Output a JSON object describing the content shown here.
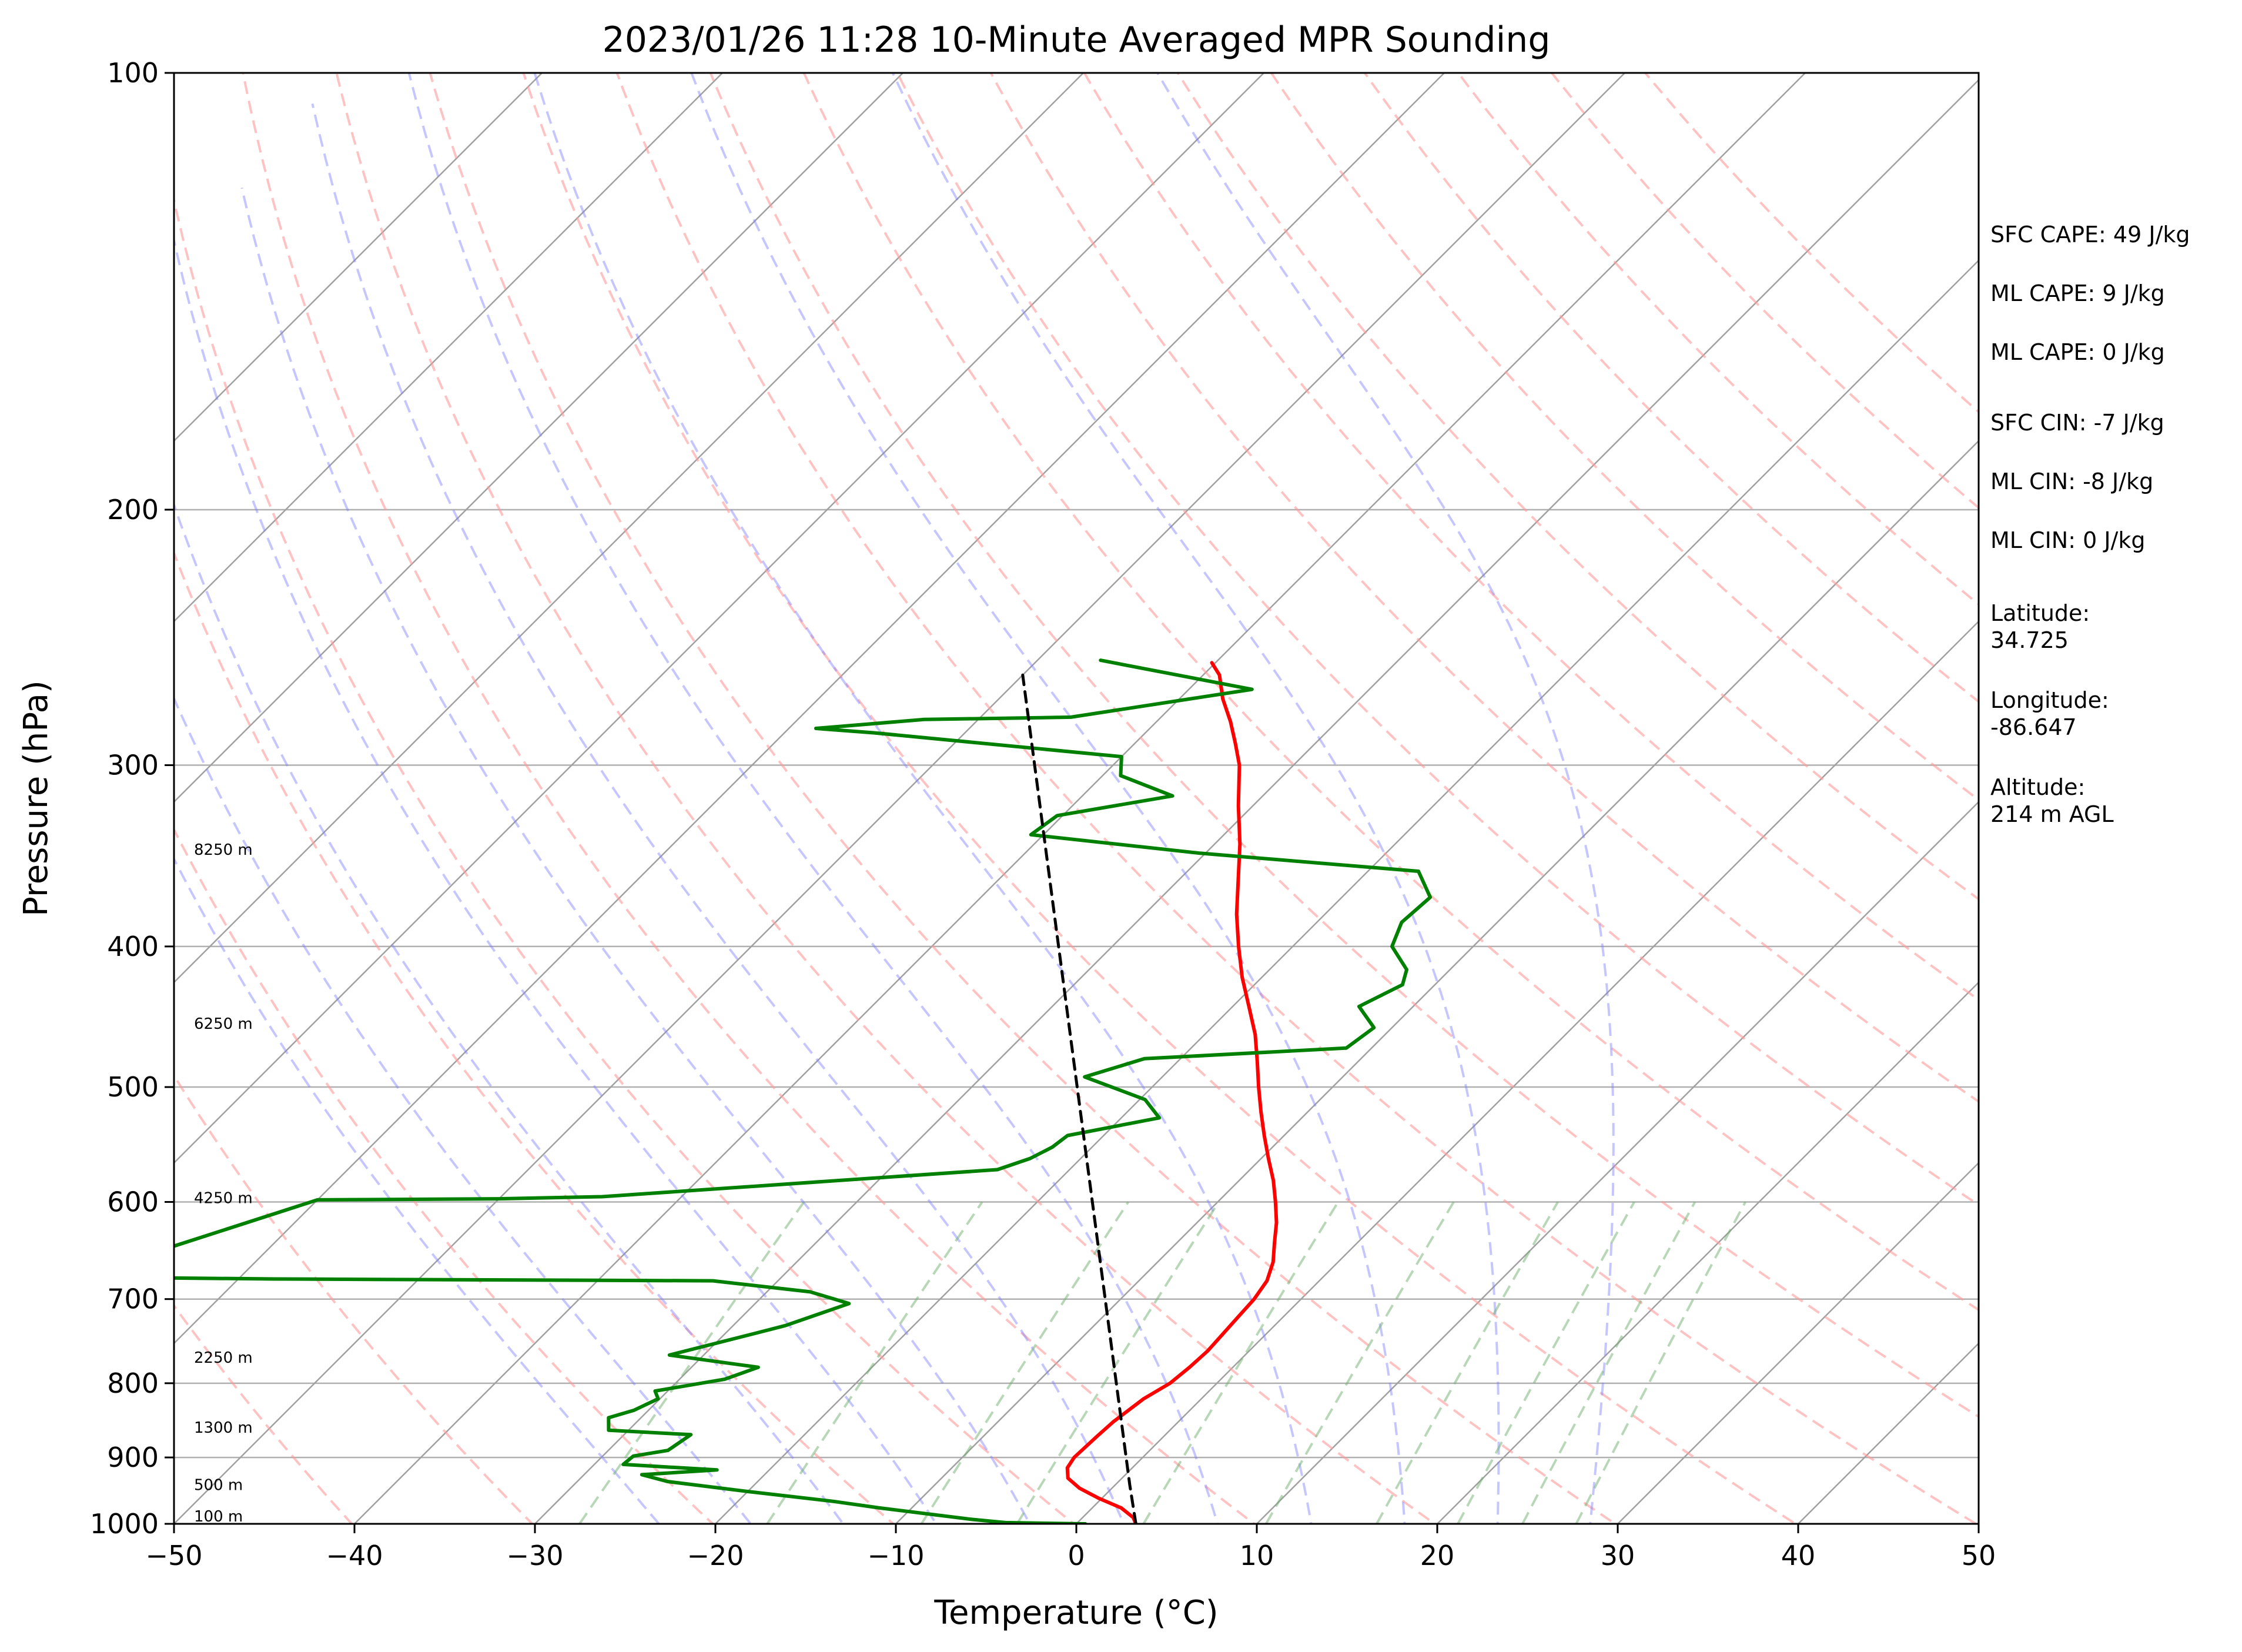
{
  "chart_data": {
    "type": "skew-t",
    "title": "2023/01/26 11:28 10-Minute Averaged MPR Sounding",
    "xlabel": "Temperature (°C)",
    "ylabel": "Pressure (hPa)",
    "xlim": [
      -50,
      50
    ],
    "ylim": [
      1000,
      100
    ],
    "y_scale": "log",
    "grid": true,
    "x_ticks": [
      -50,
      -40,
      -30,
      -20,
      -10,
      0,
      10,
      20,
      30,
      40,
      50
    ],
    "x_tick_labels": [
      "−50",
      "−40",
      "−30",
      "−20",
      "−10",
      "0",
      "10",
      "20",
      "30",
      "40",
      "50"
    ],
    "y_ticks": [
      1000,
      900,
      800,
      700,
      600,
      500,
      400,
      300,
      200,
      100
    ],
    "y_tick_labels": [
      "1000",
      "900",
      "800",
      "700",
      "600",
      "500",
      "400",
      "300",
      "200",
      "100"
    ],
    "isotherms": [
      -110,
      -100,
      -90,
      -80,
      -70,
      -60,
      -50,
      -40,
      -30,
      -20,
      -10,
      0,
      10,
      20,
      30,
      40,
      50
    ],
    "dry_adiabats_theta_K": [
      233,
      243,
      253,
      263,
      273,
      283,
      293,
      303,
      313,
      323,
      333,
      343,
      353,
      363,
      373,
      383,
      393,
      403,
      413,
      423,
      433
    ],
    "moist_adiabats_start_C": [
      -20,
      -15,
      -10,
      -5,
      0,
      5,
      10,
      15,
      20,
      25,
      30
    ],
    "mixing_ratios_gkg": [
      0.4,
      1,
      2,
      3,
      5,
      8,
      12,
      16,
      20,
      24
    ],
    "series": [
      {
        "name": "Temperature",
        "color": "#ff0000",
        "points": [
          [
            1000,
            3.3
          ],
          [
            990,
            2.8
          ],
          [
            975,
            1.6
          ],
          [
            960,
            -0.2
          ],
          [
            945,
            -1.8
          ],
          [
            930,
            -3.0
          ],
          [
            915,
            -3.6
          ],
          [
            900,
            -3.8
          ],
          [
            870,
            -3.7
          ],
          [
            850,
            -3.6
          ],
          [
            820,
            -3.2
          ],
          [
            800,
            -2.6
          ],
          [
            780,
            -2.4
          ],
          [
            760,
            -2.3
          ],
          [
            740,
            -2.4
          ],
          [
            720,
            -2.5
          ],
          [
            700,
            -2.6
          ],
          [
            680,
            -2.9
          ],
          [
            660,
            -3.6
          ],
          [
            640,
            -4.6
          ],
          [
            620,
            -5.6
          ],
          [
            600,
            -6.8
          ],
          [
            580,
            -8.1
          ],
          [
            560,
            -9.6
          ],
          [
            540,
            -11.1
          ],
          [
            520,
            -12.6
          ],
          [
            500,
            -14.1
          ],
          [
            480,
            -15.6
          ],
          [
            460,
            -17.2
          ],
          [
            440,
            -19.1
          ],
          [
            420,
            -21.1
          ],
          [
            400,
            -23.0
          ],
          [
            380,
            -24.9
          ],
          [
            360,
            -26.7
          ],
          [
            340,
            -28.6
          ],
          [
            320,
            -30.8
          ],
          [
            300,
            -33.0
          ],
          [
            290,
            -34.4
          ],
          [
            280,
            -35.9
          ],
          [
            270,
            -37.6
          ],
          [
            260,
            -39.1
          ],
          [
            255,
            -40.2
          ]
        ]
      },
      {
        "name": "Dewpoint",
        "color": "#008000",
        "points": [
          [
            1000,
            0.5
          ],
          [
            998,
            -4.0
          ],
          [
            993,
            -6.0
          ],
          [
            975,
            -11.8
          ],
          [
            965,
            -14.7
          ],
          [
            950,
            -20.0
          ],
          [
            935,
            -25.0
          ],
          [
            925,
            -26.8
          ],
          [
            918,
            -22.9
          ],
          [
            910,
            -28.4
          ],
          [
            898,
            -28.3
          ],
          [
            890,
            -26.7
          ],
          [
            868,
            -26.3
          ],
          [
            862,
            -31.1
          ],
          [
            845,
            -31.8
          ],
          [
            835,
            -30.8
          ],
          [
            820,
            -30.1
          ],
          [
            810,
            -30.7
          ],
          [
            795,
            -27.5
          ],
          [
            790,
            -27.1
          ],
          [
            780,
            -26.3
          ],
          [
            765,
            -31.9
          ],
          [
            738,
            -28.2
          ],
          [
            730,
            -27.1
          ],
          [
            705,
            -24.8
          ],
          [
            692,
            -27.6
          ],
          [
            680,
            -33.6
          ],
          [
            678,
            -58.0
          ],
          [
            676,
            -69.0
          ],
          [
            598,
            -60.0
          ],
          [
            597,
            -50.0
          ],
          [
            595,
            -44.4
          ],
          [
            570,
            -24.0
          ],
          [
            560,
            -22.8
          ],
          [
            550,
            -22.2
          ],
          [
            540,
            -22.0
          ],
          [
            525,
            -17.9
          ],
          [
            510,
            -19.7
          ],
          [
            492,
            -24.3
          ],
          [
            478,
            -22.0
          ],
          [
            470,
            -11.4
          ],
          [
            455,
            -11.0
          ],
          [
            440,
            -13.0
          ],
          [
            425,
            -11.8
          ],
          [
            415,
            -12.4
          ],
          [
            400,
            -14.5
          ],
          [
            385,
            -15.3
          ],
          [
            370,
            -15.1
          ],
          [
            355,
            -17.2
          ],
          [
            345,
            -30.3
          ],
          [
            335,
            -40.7
          ],
          [
            325,
            -40.3
          ],
          [
            315,
            -35.0
          ],
          [
            305,
            -39.0
          ],
          [
            296,
            -40.0
          ],
          [
            285,
            -55.0
          ],
          [
            283,
            -58.5
          ],
          [
            279,
            -53.0
          ],
          [
            278,
            -45.0
          ],
          [
            266,
            -36.5
          ],
          [
            254,
            -46.5
          ]
        ]
      },
      {
        "name": "Parcel",
        "color": "#000000",
        "dashed": true,
        "points": [
          [
            1000,
            3.3
          ],
          [
            940,
            0.8
          ],
          [
            260,
            -50.0
          ]
        ]
      }
    ],
    "height_labels": [
      {
        "text": "100 m",
        "pressure": 988
      },
      {
        "text": "500 m",
        "pressure": 940
      },
      {
        "text": "1300 m",
        "pressure": 858
      },
      {
        "text": "2250 m",
        "pressure": 768
      },
      {
        "text": "4250 m",
        "pressure": 596
      },
      {
        "text": "6250 m",
        "pressure": 452
      },
      {
        "text": "8250 m",
        "pressure": 343
      }
    ],
    "annotations": [
      {
        "text": "SFC CAPE: 49 J/kg"
      },
      {
        "text": "ML CAPE: 9 J/kg"
      },
      {
        "text": "ML CAPE: 0 J/kg"
      },
      {
        "text": "SFC CIN: -7 J/kg"
      },
      {
        "text": "ML CIN: -8 J/kg"
      },
      {
        "text": "ML CIN: 0 J/kg"
      },
      {
        "text": "Latitude:\n34.725"
      },
      {
        "text": "Longitude:\n-86.647"
      },
      {
        "text": "Altitude:\n214 m AGL"
      }
    ]
  }
}
